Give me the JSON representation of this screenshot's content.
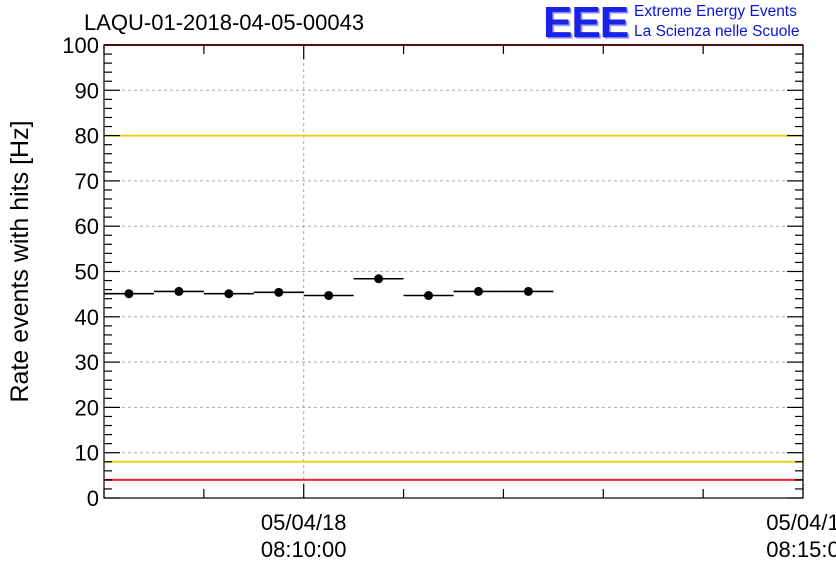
{
  "chart_data": {
    "type": "scatter",
    "title": "LAQU-01-2018-04-05-00043",
    "ylabel": "Rate events with hits [Hz]",
    "xlabel": "",
    "ylim": [
      0,
      100
    ],
    "yticks": [
      "0",
      "10",
      "20",
      "30",
      "40",
      "50",
      "60",
      "70",
      "80",
      "90",
      "100"
    ],
    "xticks": [
      {
        "value": 600,
        "date": "05/04/18",
        "time": "08:10:00"
      },
      {
        "value": 900,
        "date": "05/04/1",
        "time": "08:15:0"
      }
    ],
    "xlim": [
      480,
      900
    ],
    "grid": true,
    "series": [
      {
        "bin_width": 30,
        "x": [
          495,
          525,
          555,
          585,
          615,
          645,
          675,
          705,
          735
        ],
        "y": [
          45.1,
          45.6,
          45.1,
          45.4,
          44.7,
          48.4,
          44.7,
          45.6,
          45.6
        ]
      }
    ],
    "reference_lines": [
      {
        "y": 100,
        "color": "#e8262b"
      },
      {
        "y": 80,
        "color": "#ecd01e"
      },
      {
        "y": 8,
        "color": "#ecd01e"
      },
      {
        "y": 4,
        "color": "#e8262b"
      }
    ]
  },
  "logo": {
    "mark": "EEE",
    "line1": "Extreme Energy Events",
    "line2": "La Scienza nelle Scuole"
  }
}
